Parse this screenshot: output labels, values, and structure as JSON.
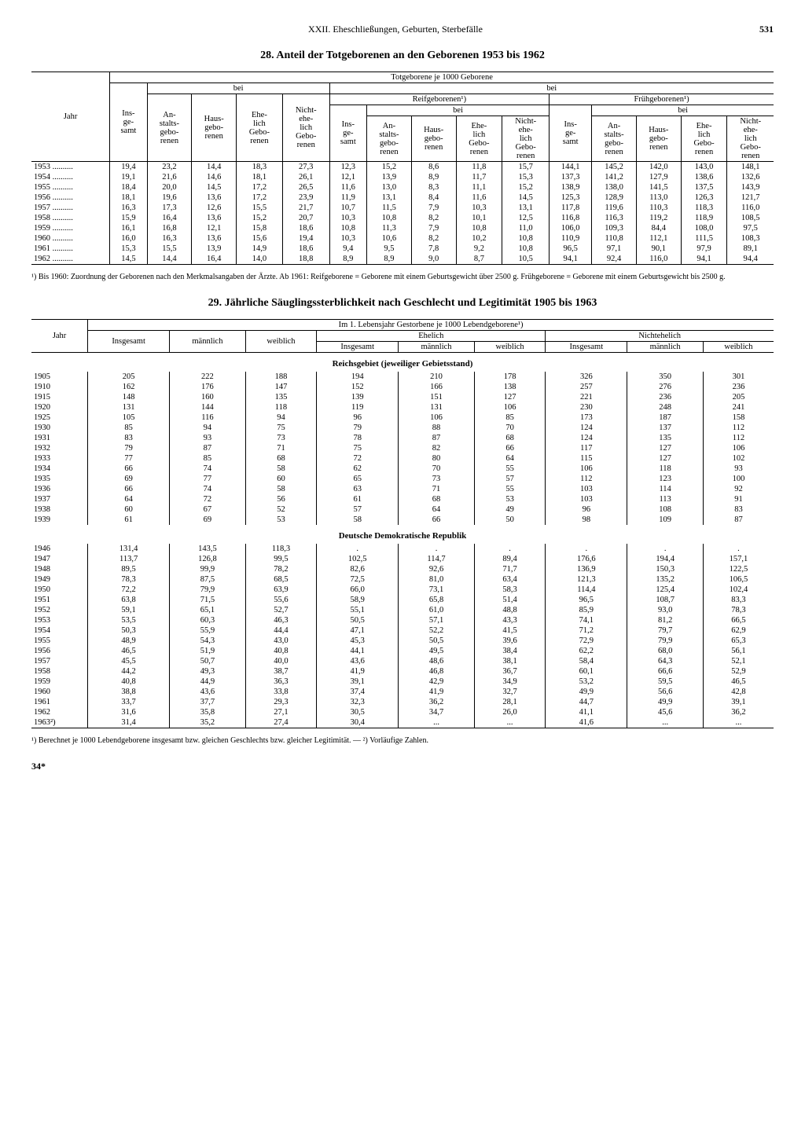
{
  "page": {
    "chapter": "XXII. Eheschließungen, Geburten, Sterbefälle",
    "number": "531",
    "footer": "34*"
  },
  "table28": {
    "title": "28. Anteil der Totgeborenen an den Geborenen 1953 bis 1962",
    "superheader": "Totgeborene je 1000 Geborene",
    "h_bei": "bei",
    "h_jahr": "Jahr",
    "h_ins": "Ins-\nge-\nsamt",
    "h_anst": "An-\nstalts-\ngebo-\nrenen",
    "h_haus": "Haus-\ngebo-\nrenen",
    "h_ehe": "Ehe-\nlich\nGebo-\nrenen",
    "h_nehe": "Nicht-\nehe-\nlich\nGebo-\nrenen",
    "h_reif": "Reifgeborenen¹)",
    "h_frueh": "Frühgeborenen¹)",
    "rows": [
      {
        "y": "1953",
        "v": [
          "19,4",
          "23,2",
          "14,4",
          "18,3",
          "27,3",
          "12,3",
          "15,2",
          "8,6",
          "11,8",
          "15,7",
          "144,1",
          "145,2",
          "142,0",
          "143,0",
          "148,1"
        ]
      },
      {
        "y": "1954",
        "v": [
          "19,1",
          "21,6",
          "14,6",
          "18,1",
          "26,1",
          "12,1",
          "13,9",
          "8,9",
          "11,7",
          "15,3",
          "137,3",
          "141,2",
          "127,9",
          "138,6",
          "132,6"
        ]
      },
      {
        "y": "1955",
        "v": [
          "18,4",
          "20,0",
          "14,5",
          "17,2",
          "26,5",
          "11,6",
          "13,0",
          "8,3",
          "11,1",
          "15,2",
          "138,9",
          "138,0",
          "141,5",
          "137,5",
          "143,9"
        ]
      },
      {
        "y": "1956",
        "v": [
          "18,1",
          "19,6",
          "13,6",
          "17,2",
          "23,9",
          "11,9",
          "13,1",
          "8,4",
          "11,6",
          "14,5",
          "125,3",
          "128,9",
          "113,0",
          "126,3",
          "121,7"
        ]
      },
      {
        "y": "1957",
        "v": [
          "16,3",
          "17,3",
          "12,6",
          "15,5",
          "21,7",
          "10,7",
          "11,5",
          "7,9",
          "10,3",
          "13,1",
          "117,8",
          "119,6",
          "110,3",
          "118,3",
          "116,0"
        ]
      },
      {
        "y": "1958",
        "v": [
          "15,9",
          "16,4",
          "13,6",
          "15,2",
          "20,7",
          "10,3",
          "10,8",
          "8,2",
          "10,1",
          "12,5",
          "116,8",
          "116,3",
          "119,2",
          "118,9",
          "108,5"
        ]
      },
      {
        "y": "1959",
        "v": [
          "16,1",
          "16,8",
          "12,1",
          "15,8",
          "18,6",
          "10,8",
          "11,3",
          "7,9",
          "10,8",
          "11,0",
          "106,0",
          "109,3",
          "84,4",
          "108,0",
          "97,5"
        ]
      },
      {
        "y": "1960",
        "v": [
          "16,0",
          "16,3",
          "13,6",
          "15,6",
          "19,4",
          "10,3",
          "10,6",
          "8,2",
          "10,2",
          "10,8",
          "110,9",
          "110,8",
          "112,1",
          "111,5",
          "108,3"
        ]
      },
      {
        "y": "1961",
        "v": [
          "15,3",
          "15,5",
          "13,9",
          "14,9",
          "18,6",
          "9,4",
          "9,5",
          "7,8",
          "9,2",
          "10,8",
          "96,5",
          "97,1",
          "90,1",
          "97,9",
          "89,1"
        ]
      },
      {
        "y": "1962",
        "v": [
          "14,5",
          "14,4",
          "16,4",
          "14,0",
          "18,8",
          "8,9",
          "8,9",
          "9,0",
          "8,7",
          "10,5",
          "94,1",
          "92,4",
          "116,0",
          "94,1",
          "94,4"
        ]
      }
    ],
    "footnote": "¹) Bis 1960: Zuordnung der Geborenen nach den Merkmalsangaben der Ärzte. Ab 1961: Reifgeborene = Geborene mit einem Geburtsgewicht über 2500 g. Frühgeborene = Geborene mit einem Geburtsgewicht bis 2500 g."
  },
  "table29": {
    "title": "29. Jährliche Säuglingssterblichkeit nach Geschlecht und Legitimität 1905 bis 1963",
    "superheader": "Im 1. Lebensjahr Gestorbene je 1000 Lebendgeborene¹)",
    "h_jahr": "Jahr",
    "h_ins": "Insgesamt",
    "h_m": "männlich",
    "h_w": "weiblich",
    "h_ehe": "Ehelich",
    "h_nehe": "Nichtehelich",
    "section1": "Reichsgebiet (jeweiliger Gebietsstand)",
    "section2": "Deutsche Demokratische Republik",
    "rows1": [
      {
        "y": "1905",
        "v": [
          "205",
          "222",
          "188",
          "194",
          "210",
          "178",
          "326",
          "350",
          "301"
        ]
      },
      {
        "y": "1910",
        "v": [
          "162",
          "176",
          "147",
          "152",
          "166",
          "138",
          "257",
          "276",
          "236"
        ]
      },
      {
        "y": "1915",
        "v": [
          "148",
          "160",
          "135",
          "139",
          "151",
          "127",
          "221",
          "236",
          "205"
        ]
      },
      {
        "y": "1920",
        "v": [
          "131",
          "144",
          "118",
          "119",
          "131",
          "106",
          "230",
          "248",
          "241"
        ]
      },
      {
        "y": "1925",
        "v": [
          "105",
          "116",
          "94",
          "96",
          "106",
          "85",
          "173",
          "187",
          "158"
        ]
      },
      {
        "y": "1930",
        "v": [
          "85",
          "94",
          "75",
          "79",
          "88",
          "70",
          "124",
          "137",
          "112"
        ]
      },
      {
        "y": "1931",
        "v": [
          "83",
          "93",
          "73",
          "78",
          "87",
          "68",
          "124",
          "135",
          "112"
        ]
      },
      {
        "y": "1932",
        "v": [
          "79",
          "87",
          "71",
          "75",
          "82",
          "66",
          "117",
          "127",
          "106"
        ]
      },
      {
        "y": "1933",
        "v": [
          "77",
          "85",
          "68",
          "72",
          "80",
          "64",
          "115",
          "127",
          "102"
        ]
      },
      {
        "y": "1934",
        "v": [
          "66",
          "74",
          "58",
          "62",
          "70",
          "55",
          "106",
          "118",
          "93"
        ]
      },
      {
        "y": "1935",
        "v": [
          "69",
          "77",
          "60",
          "65",
          "73",
          "57",
          "112",
          "123",
          "100"
        ]
      },
      {
        "y": "1936",
        "v": [
          "66",
          "74",
          "58",
          "63",
          "71",
          "55",
          "103",
          "114",
          "92"
        ]
      },
      {
        "y": "1937",
        "v": [
          "64",
          "72",
          "56",
          "61",
          "68",
          "53",
          "103",
          "113",
          "91"
        ]
      },
      {
        "y": "1938",
        "v": [
          "60",
          "67",
          "52",
          "57",
          "64",
          "49",
          "96",
          "108",
          "83"
        ]
      },
      {
        "y": "1939",
        "v": [
          "61",
          "69",
          "53",
          "58",
          "66",
          "50",
          "98",
          "109",
          "87"
        ]
      }
    ],
    "rows2": [
      {
        "y": "1946",
        "v": [
          "131,4",
          "143,5",
          "118,3",
          ".",
          ".",
          ".",
          ".",
          ".",
          "."
        ]
      },
      {
        "y": "1947",
        "v": [
          "113,7",
          "126,8",
          "99,5",
          "102,5",
          "114,7",
          "89,4",
          "176,6",
          "194,4",
          "157,1"
        ]
      },
      {
        "y": "1948",
        "v": [
          "89,5",
          "99,9",
          "78,2",
          "82,6",
          "92,6",
          "71,7",
          "136,9",
          "150,3",
          "122,5"
        ]
      },
      {
        "y": "1949",
        "v": [
          "78,3",
          "87,5",
          "68,5",
          "72,5",
          "81,0",
          "63,4",
          "121,3",
          "135,2",
          "106,5"
        ]
      },
      {
        "y": "1950",
        "v": [
          "72,2",
          "79,9",
          "63,9",
          "66,0",
          "73,1",
          "58,3",
          "114,4",
          "125,4",
          "102,4"
        ]
      },
      {
        "y": "1951",
        "v": [
          "63,8",
          "71,5",
          "55,6",
          "58,9",
          "65,8",
          "51,4",
          "96,5",
          "108,7",
          "83,3"
        ]
      },
      {
        "y": "1952",
        "v": [
          "59,1",
          "65,1",
          "52,7",
          "55,1",
          "61,0",
          "48,8",
          "85,9",
          "93,0",
          "78,3"
        ]
      },
      {
        "y": "1953",
        "v": [
          "53,5",
          "60,3",
          "46,3",
          "50,5",
          "57,1",
          "43,3",
          "74,1",
          "81,2",
          "66,5"
        ]
      },
      {
        "y": "1954",
        "v": [
          "50,3",
          "55,9",
          "44,4",
          "47,1",
          "52,2",
          "41,5",
          "71,2",
          "79,7",
          "62,9"
        ]
      },
      {
        "y": "1955",
        "v": [
          "48,9",
          "54,3",
          "43,0",
          "45,3",
          "50,5",
          "39,6",
          "72,9",
          "79,9",
          "65,3"
        ]
      },
      {
        "y": "1956",
        "v": [
          "46,5",
          "51,9",
          "40,8",
          "44,1",
          "49,5",
          "38,4",
          "62,2",
          "68,0",
          "56,1"
        ]
      },
      {
        "y": "1957",
        "v": [
          "45,5",
          "50,7",
          "40,0",
          "43,6",
          "48,6",
          "38,1",
          "58,4",
          "64,3",
          "52,1"
        ]
      },
      {
        "y": "1958",
        "v": [
          "44,2",
          "49,3",
          "38,7",
          "41,9",
          "46,8",
          "36,7",
          "60,1",
          "66,6",
          "52,9"
        ]
      },
      {
        "y": "1959",
        "v": [
          "40,8",
          "44,9",
          "36,3",
          "39,1",
          "42,9",
          "34,9",
          "53,2",
          "59,5",
          "46,5"
        ]
      },
      {
        "y": "1960",
        "v": [
          "38,8",
          "43,6",
          "33,8",
          "37,4",
          "41,9",
          "32,7",
          "49,9",
          "56,6",
          "42,8"
        ]
      },
      {
        "y": "1961",
        "v": [
          "33,7",
          "37,7",
          "29,3",
          "32,3",
          "36,2",
          "28,1",
          "44,7",
          "49,9",
          "39,1"
        ]
      },
      {
        "y": "1962",
        "v": [
          "31,6",
          "35,8",
          "27,1",
          "30,5",
          "34,7",
          "26,0",
          "41,1",
          "45,6",
          "36,2"
        ]
      },
      {
        "y": "1963²)",
        "v": [
          "31,4",
          "35,2",
          "27,4",
          "30,4",
          "...",
          "...",
          "41,6",
          "...",
          "..."
        ]
      }
    ],
    "footnote": "¹) Berechnet je 1000 Lebendgeborene insgesamt bzw. gleichen Geschlechts bzw. gleicher Legitimität. — ²) Vorläufige Zahlen."
  }
}
